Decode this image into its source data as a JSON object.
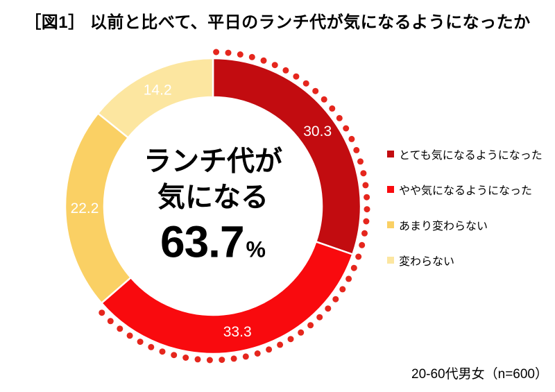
{
  "title": "［図1］ 以前と比べて、平日のランチ代が気になるようになったか",
  "source_note": "20-60代男女（n=600）",
  "center_text": {
    "line1": "ランチ代が",
    "line2": "気になる",
    "value": "63.7",
    "unit": "%"
  },
  "chart_data": {
    "type": "pie",
    "subtype": "donut",
    "title": "［図1］ 以前と比べて、平日のランチ代が気になるようになったか",
    "start_angle_deg": 0,
    "direction": "clockwise",
    "legend_position": "right",
    "segments": [
      {
        "label": "とても気になるようになった",
        "value": 30.3,
        "color": "#C20C10",
        "value_color": "#FFFFFF"
      },
      {
        "label": "やや気になるようになった",
        "value": 33.3,
        "color": "#F90A0E",
        "value_color": "#FFFFFF"
      },
      {
        "label": "あまり変わらない",
        "value": 22.2,
        "color": "#FAD064",
        "value_color": "#FFFFFF"
      },
      {
        "label": "変わらない",
        "value": 14.2,
        "color": "#FCE6A0",
        "value_color": "#FFFFFF"
      }
    ],
    "highlight": {
      "style": "dotted-arc",
      "color": "#E5261D",
      "covers_segments": [
        0,
        1
      ],
      "total_label": "63.7"
    },
    "center_annotation": "ランチ代が気になる 63.7%"
  }
}
